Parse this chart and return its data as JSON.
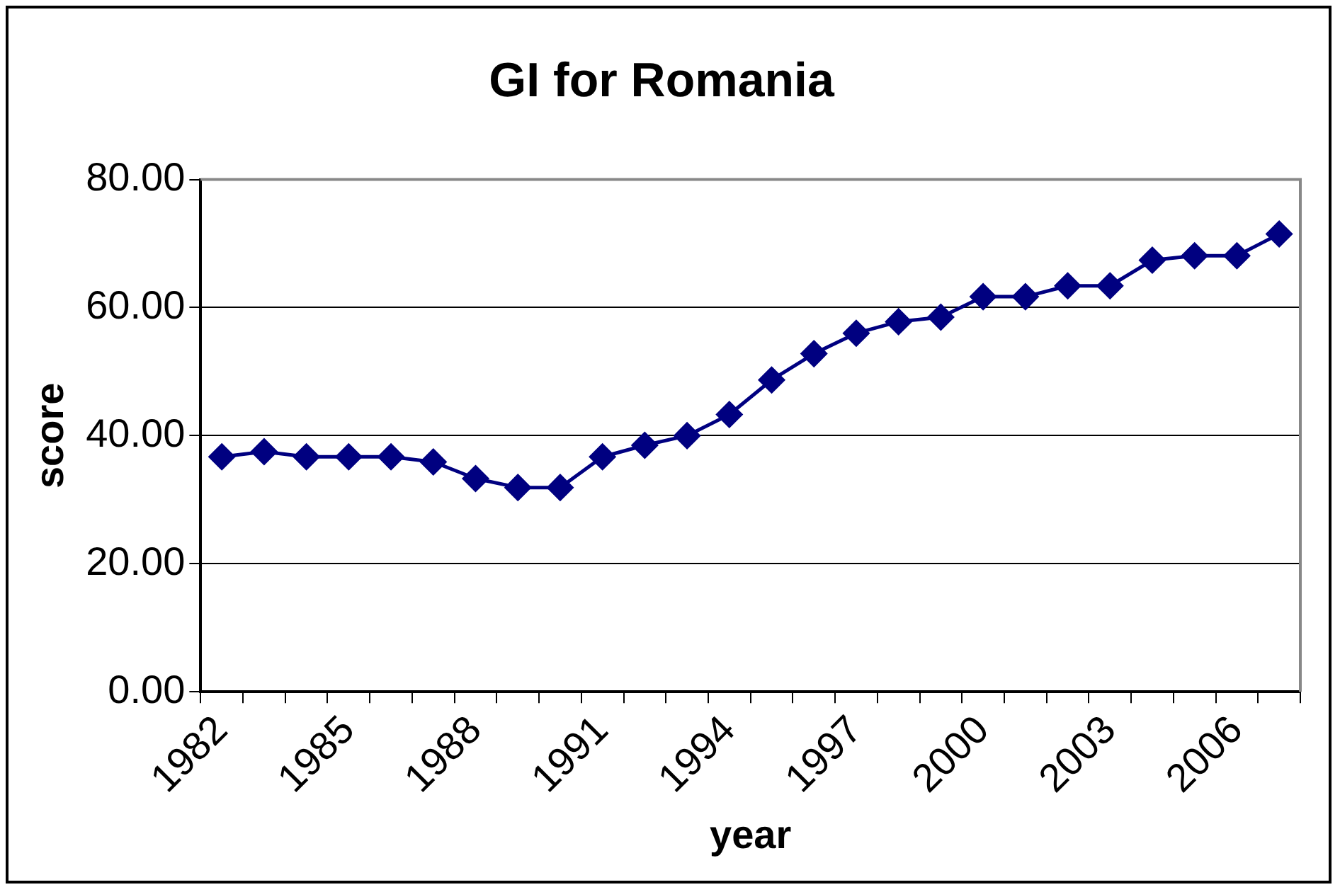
{
  "chart_data": {
    "type": "line",
    "title": "GI for Romania",
    "xlabel": "year",
    "ylabel": "score",
    "categories": [
      "1982",
      null,
      null,
      "1985",
      null,
      null,
      "1988",
      null,
      null,
      "1991",
      null,
      null,
      "1994",
      null,
      null,
      "1997",
      null,
      null,
      "2000",
      null,
      null,
      "2003",
      null,
      null,
      "2006",
      null
    ],
    "series": [
      {
        "color": "#000080",
        "values": [
          36.7,
          37.5,
          36.7,
          36.7,
          36.7,
          35.9,
          33.3,
          31.9,
          31.9,
          36.7,
          38.5,
          40,
          43.3,
          48.7,
          52.8,
          56,
          57.8,
          58.5,
          61.7,
          61.7,
          63.4,
          63.4,
          67.4,
          68.1,
          68.1,
          71.5
        ]
      }
    ],
    "ylim": [
      0,
      80
    ],
    "yticks": [
      {
        "value": 0,
        "label": "0.00"
      },
      {
        "value": 20,
        "label": "20.00"
      },
      {
        "value": 40,
        "label": "40.00"
      },
      {
        "value": 60,
        "label": "60.00"
      },
      {
        "value": 80,
        "label": "80.00"
      }
    ],
    "grid": "y",
    "legend": false,
    "marker": "diamond",
    "line_style": "solid"
  }
}
